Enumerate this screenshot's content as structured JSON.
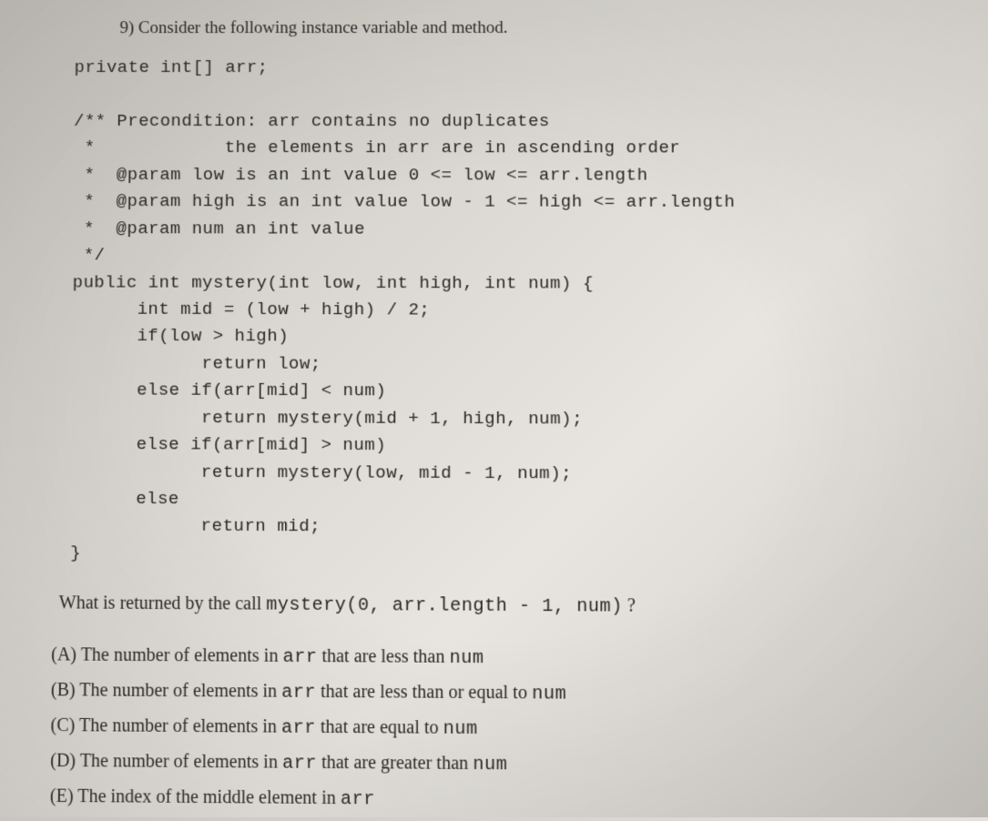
{
  "question": {
    "number": "9)",
    "prompt": "Consider the following instance variable and method."
  },
  "code": {
    "line1": "private int[] arr;",
    "line2": "",
    "line3": "/** Precondition: arr contains no duplicates",
    "line4": " *            the elements in arr are in ascending order",
    "line5": " *  @param low is an int value 0 <= low <= arr.length",
    "line6": " *  @param high is an int value low - 1 <= high <= arr.length",
    "line7": " *  @param num an int value",
    "line8": " */",
    "line9": "public int mystery(int low, int high, int num) {",
    "line10": "      int mid = (low + high) / 2;",
    "line11": "      if(low > high)",
    "line12": "            return low;",
    "line13": "      else if(arr[mid] < num)",
    "line14": "            return mystery(mid + 1, high, num);",
    "line15": "      else if(arr[mid] > num)",
    "line16": "            return mystery(low, mid - 1, num);",
    "line17": "      else",
    "line18": "            return mid;",
    "line19": "}"
  },
  "ask": {
    "prefix": "What is returned by the call ",
    "call": "mystery(0, arr.length - 1, num)",
    "suffix": " ?"
  },
  "answers": {
    "a": {
      "label": "(A) The number of elements in ",
      "code": "arr",
      "mid": " that are less than ",
      "code2": "num",
      "tail": ""
    },
    "b": {
      "label": "(B) The number of elements in ",
      "code": "arr",
      "mid": " that are less than or equal to ",
      "code2": "num",
      "tail": ""
    },
    "c": {
      "label": "(C) The number of elements in ",
      "code": "arr",
      "mid": " that are equal to ",
      "code2": "num",
      "tail": ""
    },
    "d": {
      "label": "(D) The number of elements in ",
      "code": "arr",
      "mid": " that are greater than ",
      "code2": "num",
      "tail": ""
    },
    "e": {
      "label": "(E) The index of the middle element in ",
      "code": "arr",
      "mid": "",
      "code2": "",
      "tail": ""
    }
  },
  "style": {
    "bg_gradient_start": "#c8c5c0",
    "bg_gradient_end": "#d0cdc8",
    "text_color": "#2a2825",
    "serif_font": "Georgia",
    "mono_font": "Courier New",
    "body_fontsize": 20,
    "code_fontsize": 19
  }
}
